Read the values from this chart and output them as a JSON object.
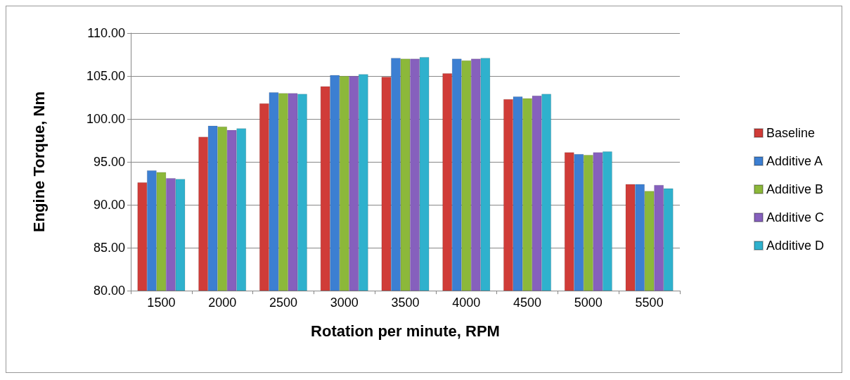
{
  "chart_data": {
    "type": "bar",
    "xlabel": "Rotation per minute, RPM",
    "ylabel": "Engine Torque, Nm",
    "categories": [
      "1500",
      "2000",
      "2500",
      "3000",
      "3500",
      "4000",
      "4500",
      "5000",
      "5500"
    ],
    "series": [
      {
        "name": "Baseline",
        "color": "#d03c38",
        "values": [
          92.6,
          97.9,
          101.8,
          103.8,
          104.9,
          105.3,
          102.3,
          96.1,
          92.4
        ]
      },
      {
        "name": "Additive A",
        "color": "#3c7fd2",
        "values": [
          94.0,
          99.2,
          103.1,
          105.1,
          107.1,
          107.0,
          102.6,
          95.9,
          92.4
        ]
      },
      {
        "name": "Additive B",
        "color": "#8cb83a",
        "values": [
          93.8,
          99.1,
          103.0,
          105.0,
          107.0,
          106.8,
          102.4,
          95.8,
          91.6
        ]
      },
      {
        "name": "Additive C",
        "color": "#8660bd",
        "values": [
          93.1,
          98.7,
          103.0,
          105.0,
          107.0,
          107.0,
          102.7,
          96.1,
          92.3
        ]
      },
      {
        "name": "Additive D",
        "color": "#2fb1cd",
        "values": [
          93.0,
          98.9,
          102.9,
          105.2,
          107.2,
          107.1,
          102.9,
          96.2,
          91.9
        ]
      }
    ],
    "ylim": [
      80,
      110
    ],
    "yticks": [
      {
        "value": 80,
        "label": "80.00"
      },
      {
        "value": 85,
        "label": "85.00"
      },
      {
        "value": 90,
        "label": "90.00"
      },
      {
        "value": 95,
        "label": "95.00"
      },
      {
        "value": 100,
        "label": "100.00"
      },
      {
        "value": 105,
        "label": "105.00"
      },
      {
        "value": 110,
        "label": "110.00"
      }
    ],
    "grid": "y",
    "legend": "right"
  }
}
